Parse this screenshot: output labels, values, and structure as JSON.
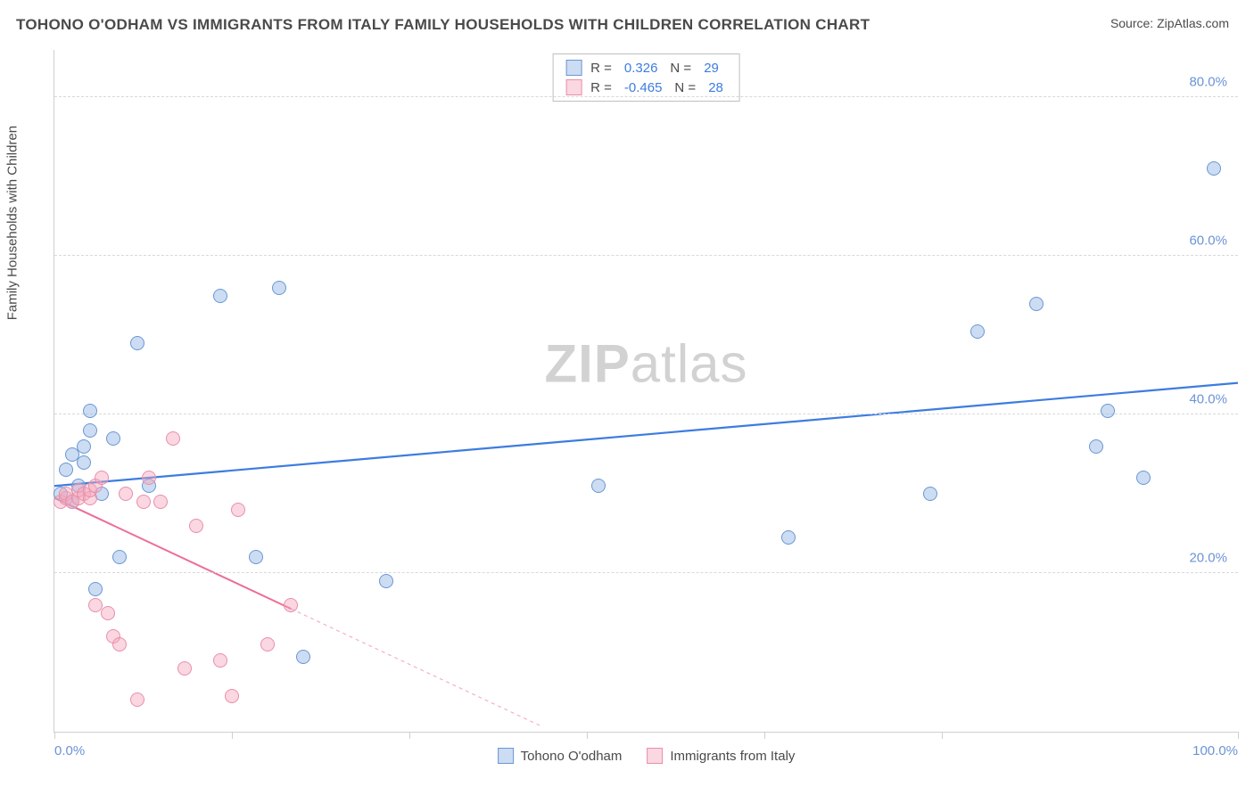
{
  "header": {
    "title": "TOHONO O'ODHAM VS IMMIGRANTS FROM ITALY FAMILY HOUSEHOLDS WITH CHILDREN CORRELATION CHART",
    "source": "Source: ZipAtlas.com"
  },
  "chart": {
    "type": "scatter",
    "y_axis_label": "Family Households with Children",
    "watermark": "ZIPatlas",
    "background_color": "#ffffff",
    "grid_color": "#d8d8d8",
    "axis_color": "#cfcfcf",
    "tick_label_color": "#6c93d6",
    "text_color": "#4a4a4a",
    "title_fontsize": 17,
    "label_fontsize": 15,
    "tick_fontsize": 15,
    "xlim": [
      0,
      100
    ],
    "ylim": [
      0,
      86
    ],
    "x_ticks": [
      0,
      15,
      30,
      45,
      60,
      75,
      100
    ],
    "x_tick_labels": {
      "0": "0.0%",
      "100": "100.0%"
    },
    "y_gridlines": [
      20,
      40,
      60,
      80
    ],
    "y_tick_labels": {
      "20": "20.0%",
      "40": "40.0%",
      "60": "60.0%",
      "80": "80.0%"
    },
    "series": [
      {
        "name": "Tohono O'odham",
        "color_fill": "rgba(141,178,226,0.45)",
        "color_stroke": "#6a97d3",
        "marker_size": 16,
        "r_value": "0.326",
        "n_value": "29",
        "regression": {
          "x1": 0,
          "y1": 31,
          "x2": 100,
          "y2": 44,
          "color": "#3d7ce0",
          "width": 2.2,
          "dash": "none"
        },
        "points": [
          [
            0.5,
            30
          ],
          [
            1,
            33
          ],
          [
            1.5,
            29
          ],
          [
            1.5,
            35
          ],
          [
            2,
            31
          ],
          [
            2.5,
            36
          ],
          [
            2.5,
            34
          ],
          [
            3,
            38
          ],
          [
            3,
            40.5
          ],
          [
            3.5,
            18
          ],
          [
            4,
            30
          ],
          [
            5,
            37
          ],
          [
            5.5,
            22
          ],
          [
            7,
            49
          ],
          [
            8,
            31
          ],
          [
            14,
            55
          ],
          [
            17,
            22
          ],
          [
            19,
            56
          ],
          [
            21,
            9.5
          ],
          [
            28,
            19
          ],
          [
            46,
            31
          ],
          [
            62,
            24.5
          ],
          [
            74,
            30
          ],
          [
            78,
            50.5
          ],
          [
            83,
            54
          ],
          [
            88,
            36
          ],
          [
            89,
            40.5
          ],
          [
            92,
            32
          ],
          [
            98,
            71
          ]
        ]
      },
      {
        "name": "Immigrants from Italy",
        "color_fill": "rgba(244,166,188,0.45)",
        "color_stroke": "#e88fa9",
        "marker_size": 16,
        "r_value": "-0.465",
        "n_value": "28",
        "regression": {
          "x1": 0,
          "y1": 29.5,
          "x2": 20,
          "y2": 15.5,
          "extend_to_x": 41,
          "color": "#ed6e94",
          "width": 2,
          "dash": "4 4"
        },
        "points": [
          [
            0.5,
            29
          ],
          [
            1,
            29.5
          ],
          [
            1,
            30
          ],
          [
            1.5,
            29
          ],
          [
            2,
            29.5
          ],
          [
            2,
            30.5
          ],
          [
            2.5,
            30
          ],
          [
            3,
            29.5
          ],
          [
            3,
            30.5
          ],
          [
            3.5,
            31
          ],
          [
            3.5,
            16
          ],
          [
            4,
            32
          ],
          [
            4.5,
            15
          ],
          [
            5,
            12
          ],
          [
            5.5,
            11
          ],
          [
            6,
            30
          ],
          [
            7,
            4
          ],
          [
            7.5,
            29
          ],
          [
            8,
            32
          ],
          [
            9,
            29
          ],
          [
            10,
            37
          ],
          [
            11,
            8
          ],
          [
            12,
            26
          ],
          [
            14,
            9
          ],
          [
            15,
            4.5
          ],
          [
            15.5,
            28
          ],
          [
            18,
            11
          ],
          [
            20,
            16
          ]
        ]
      }
    ],
    "stats_box": {
      "r_label": "R =",
      "n_label": "N ="
    },
    "bottom_legend": [
      {
        "swatch": "blue",
        "label": "Tohono O'odham"
      },
      {
        "swatch": "pink",
        "label": "Immigrants from Italy"
      }
    ]
  }
}
